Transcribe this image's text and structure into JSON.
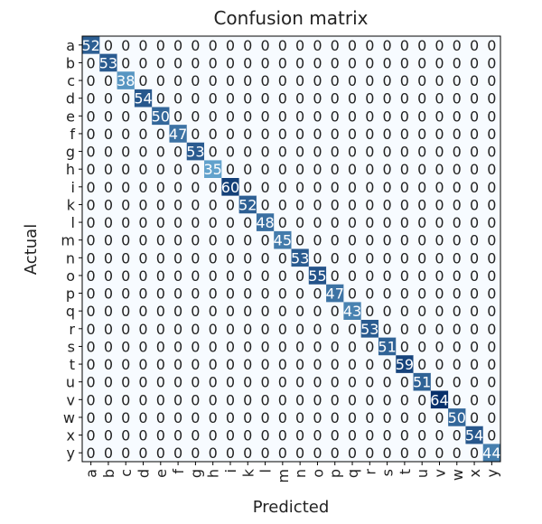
{
  "chart_data": {
    "type": "heatmap",
    "title": "Confusion matrix",
    "xlabel": "Predicted",
    "ylabel": "Actual",
    "labels": [
      "a",
      "b",
      "c",
      "d",
      "e",
      "f",
      "g",
      "h",
      "i",
      "k",
      "l",
      "m",
      "n",
      "o",
      "p",
      "q",
      "r",
      "s",
      "t",
      "u",
      "v",
      "w",
      "x",
      "y"
    ],
    "diagonal": [
      52,
      53,
      38,
      54,
      50,
      47,
      53,
      35,
      60,
      52,
      48,
      45,
      53,
      55,
      47,
      43,
      53,
      51,
      59,
      51,
      64,
      50,
      54,
      44
    ],
    "off_diagonal_value": 0,
    "colormap": "Blues",
    "colorbar": false,
    "grid": false
  },
  "colors": {
    "background": "#ffffff",
    "axis": "#000000",
    "text_dark": "#222222",
    "text_light": "#ffffff"
  }
}
